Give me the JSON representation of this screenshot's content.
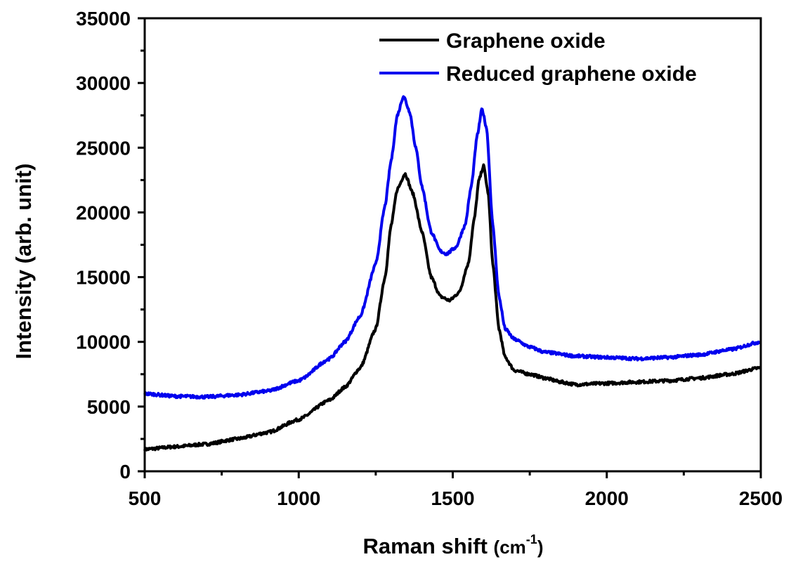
{
  "chart_data": {
    "type": "line",
    "title": "",
    "xlabel": "Raman shift",
    "xlabel_unit": "(cm",
    "xlabel_unit_sup": "-1",
    "xlabel_unit_close": ")",
    "ylabel": "Intensity (arb. unit)",
    "xlim": [
      500,
      2500
    ],
    "ylim": [
      0,
      35000
    ],
    "xticks": [
      500,
      1000,
      1500,
      2000,
      2500
    ],
    "yticks": [
      0,
      5000,
      10000,
      15000,
      20000,
      25000,
      30000,
      35000
    ],
    "xtick_labels": [
      "500",
      "1000",
      "1500",
      "2000",
      "2500"
    ],
    "ytick_labels": [
      "0",
      "5000",
      "10000",
      "15000",
      "20000",
      "25000",
      "30000",
      "35000"
    ],
    "grid": false,
    "legend_position": "top-right",
    "series": [
      {
        "name": "Graphene oxide",
        "color": "#000000",
        "x": [
          500,
          600,
          700,
          800,
          900,
          1000,
          1100,
          1150,
          1200,
          1250,
          1280,
          1300,
          1320,
          1345,
          1370,
          1400,
          1430,
          1460,
          1490,
          1520,
          1550,
          1570,
          1585,
          1600,
          1615,
          1630,
          1650,
          1670,
          1700,
          1750,
          1800,
          1850,
          1900,
          2000,
          2100,
          2200,
          2300,
          2400,
          2500
        ],
        "y": [
          1700,
          1900,
          2100,
          2500,
          3000,
          4000,
          5500,
          6500,
          8000,
          11000,
          15000,
          19000,
          21800,
          23000,
          21500,
          18500,
          15000,
          13500,
          13200,
          13800,
          16000,
          19500,
          22500,
          23600,
          21500,
          16000,
          11000,
          8800,
          7800,
          7500,
          7200,
          6900,
          6700,
          6800,
          6900,
          7000,
          7200,
          7500,
          8000
        ]
      },
      {
        "name": "Reduced graphene oxide",
        "color": "#0000ee",
        "x": [
          500,
          600,
          700,
          800,
          900,
          1000,
          1100,
          1150,
          1200,
          1250,
          1280,
          1300,
          1320,
          1340,
          1360,
          1380,
          1400,
          1430,
          1460,
          1480,
          1510,
          1540,
          1560,
          1580,
          1595,
          1610,
          1630,
          1650,
          1670,
          1700,
          1750,
          1800,
          1900,
          2000,
          2100,
          2200,
          2300,
          2400,
          2500
        ],
        "y": [
          6000,
          5800,
          5750,
          5900,
          6200,
          7000,
          8700,
          10000,
          12000,
          16000,
          20500,
          24000,
          27500,
          29000,
          27800,
          25000,
          22000,
          18500,
          17000,
          16800,
          17300,
          19000,
          22000,
          26000,
          28000,
          26500,
          19000,
          13500,
          11000,
          10200,
          9600,
          9200,
          8900,
          8800,
          8700,
          8800,
          9000,
          9400,
          10000
        ]
      }
    ]
  }
}
